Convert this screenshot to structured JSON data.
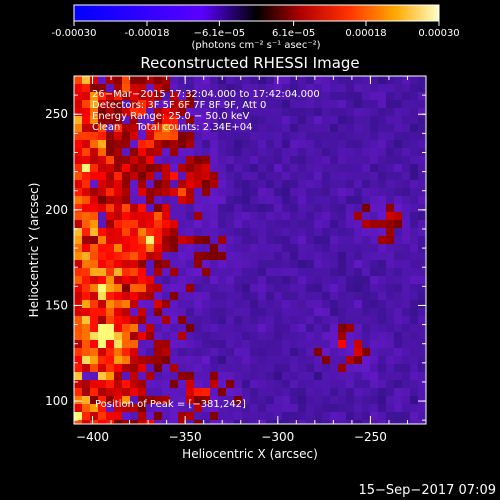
{
  "chart_data": {
    "type": "heatmap",
    "title": "Reconstructed RHESSI Image",
    "xlabel": "Heliocentric X (arcsec)",
    "ylabel": "Heliocentric Y (arcsec)",
    "xlim": [
      -410,
      -220
    ],
    "ylim": [
      88,
      270
    ],
    "x_ticks": [
      -400,
      -350,
      -300,
      -250
    ],
    "y_ticks": [
      100,
      150,
      200,
      250
    ],
    "x_tick_labels": [
      "−400",
      "−350",
      "−300",
      "−250"
    ],
    "y_tick_labels": [
      "100",
      "150",
      "200",
      "250"
    ],
    "colorbar": {
      "range": [
        -0.0003,
        0.0003
      ],
      "ticks": [
        -0.0003,
        -0.00018,
        -6.1e-05,
        6.1e-05,
        0.00018,
        0.0003
      ],
      "tick_labels": [
        "-0.00030",
        "-0.00018",
        "−6.1e−05",
        "6.1e−05",
        "0.00018",
        "0.00030"
      ],
      "unit_label": "(photons cm⁻² s⁻¹ asec⁻²)"
    },
    "annotations": [
      "26−Mar−2015 17:32:04.000 to 17:42:04.000",
      "Detectors: 3F 5F 6F 7F 8F 9F, Att 0",
      "Energy Range: 25.0 − 50.0 keV",
      "Clean     Total counts: 2.34E+04"
    ],
    "peak_label": "Position of Peak = [−381,242]",
    "peak": [
      -381,
      242
    ],
    "footer_timestamp": "15−Sep−2017 07:09"
  }
}
